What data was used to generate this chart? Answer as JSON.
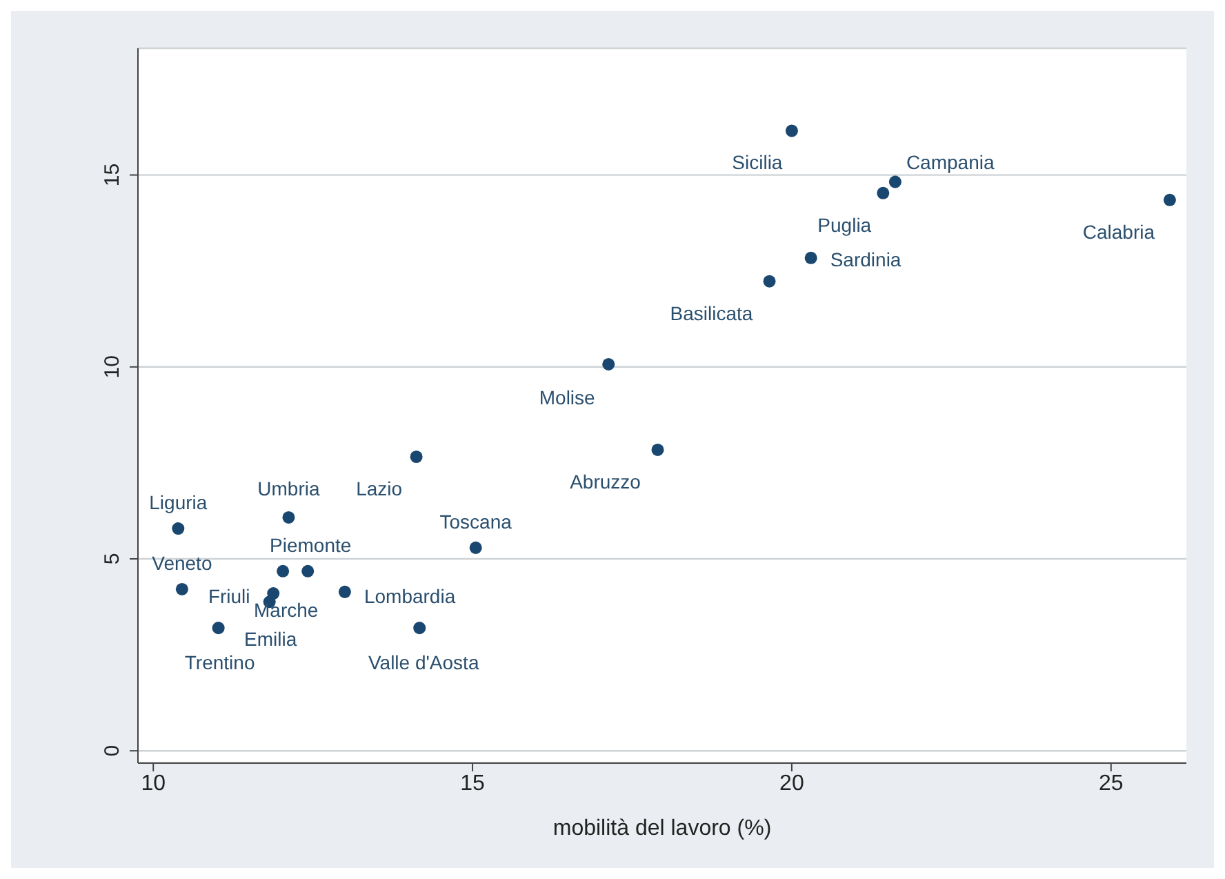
{
  "chart_data": {
    "type": "scatter",
    "xlabel": "mobilità del lavoro (%)",
    "x": [
      10.39,
      12.12,
      14.12,
      15.05,
      12.42,
      10.45,
      11.88,
      11.82,
      13.0,
      12.03,
      11.02,
      14.17,
      17.9,
      17.13,
      19.65,
      20.0,
      21.43,
      21.62,
      20.3,
      25.92
    ],
    "values": [
      5.79,
      6.08,
      7.66,
      5.29,
      4.68,
      4.21,
      4.1,
      3.88,
      4.14,
      4.68,
      3.2,
      3.2,
      7.84,
      10.07,
      12.23,
      16.15,
      14.53,
      14.82,
      12.84,
      14.35
    ],
    "color": "#1a476f",
    "marker": "circle",
    "xlim": [
      9.76,
      26.18
    ],
    "xticks": [
      10,
      15,
      20,
      25
    ],
    "ylim": [
      -0.32,
      18.3
    ],
    "yticks": [
      0,
      5,
      10,
      15
    ],
    "grid": "y",
    "annotations": [
      {
        "text": "Liguria",
        "x": 10.39,
        "y": 5.79
      },
      {
        "text": "Umbria",
        "x": 12.12,
        "y": 6.08
      },
      {
        "text": "Lazio",
        "x": 14.12,
        "y": 7.66
      },
      {
        "text": "Toscana",
        "x": 15.05,
        "y": 5.29
      },
      {
        "text": "Piemonte",
        "x": 12.42,
        "y": 4.68
      },
      {
        "text": "Veneto",
        "x": 10.45,
        "y": 4.21
      },
      {
        "text": "Friuli",
        "x": 11.88,
        "y": 4.1
      },
      {
        "text": "Marche",
        "x": 11.82,
        "y": 3.88
      },
      {
        "text": "Lombardia",
        "x": 13.0,
        "y": 4.14
      },
      {
        "text": "Emilia",
        "x": 12.03,
        "y": 4.68
      },
      {
        "text": "Trentino",
        "x": 11.02,
        "y": 3.2
      },
      {
        "text": "Valle d'Aosta",
        "x": 14.17,
        "y": 3.2
      },
      {
        "text": "Abruzzo",
        "x": 17.9,
        "y": 7.84
      },
      {
        "text": "Molise",
        "x": 17.13,
        "y": 10.07
      },
      {
        "text": "Basilicata",
        "x": 19.65,
        "y": 12.23
      },
      {
        "text": "Sicilia",
        "x": 20.0,
        "y": 16.15
      },
      {
        "text": "Puglia",
        "x": 21.43,
        "y": 14.53
      },
      {
        "text": "Campania",
        "x": 21.62,
        "y": 14.82
      },
      {
        "text": "Sardinia",
        "x": 20.3,
        "y": 12.84
      },
      {
        "text": "Calabria",
        "x": 25.92,
        "y": 14.35
      }
    ]
  }
}
